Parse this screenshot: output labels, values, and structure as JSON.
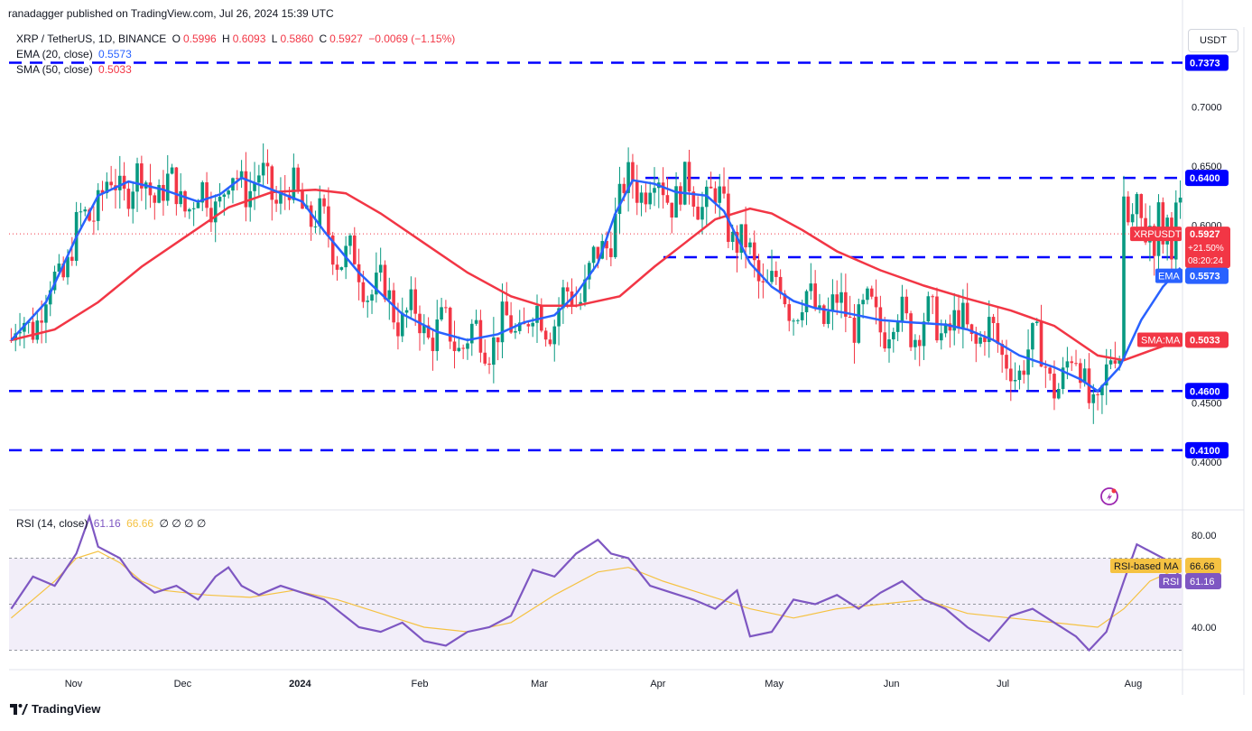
{
  "header": {
    "published": "ranadagger published on TradingView.com, Jul 26, 2024 15:39 UTC",
    "symbol": "XRP / TetherUS, 1D, BINANCE",
    "o_label": "O",
    "o_val": "0.5996",
    "h_label": "H",
    "h_val": "0.6093",
    "l_label": "L",
    "l_val": "0.5860",
    "c_label": "C",
    "c_val": "0.5927",
    "change": "−0.0069 (−1.15%)",
    "ema_label": "EMA (20, close)",
    "ema_val": "0.5573",
    "sma_label": "SMA (50, close)",
    "sma_val": "0.5033",
    "rsi_label": "RSI (14, close)",
    "rsi_val": "61.16",
    "rsi_ma_val": "66.66",
    "rsi_extra": "∅ ∅ ∅ ∅"
  },
  "currency_button": "USDT",
  "branding": "TradingView",
  "colors": {
    "up": "#089981",
    "down": "#f23645",
    "ema": "#2962ff",
    "sma": "#f23645",
    "level": "#0000ff",
    "rsi": "#7e57c2",
    "rsi_ma": "#f5c242",
    "rsi_band": "#ede7f6"
  },
  "chart_data": [
    {
      "type": "candlestick",
      "title": "XRP / TetherUS, 1D, BINANCE",
      "x_ticks": [
        "Nov",
        "Dec",
        "2024",
        "Feb",
        "Mar",
        "Apr",
        "May",
        "Jun",
        "Jul",
        "Aug"
      ],
      "y_ticks": [
        "0.7000",
        "0.6500",
        "0.6000",
        "0.4500",
        "0.4000"
      ],
      "ylim": [
        0.365,
        0.785
      ],
      "horizontal_levels": [
        "0.7373",
        "0.6400",
        "0.5730",
        "0.4600",
        "0.4100"
      ],
      "price_tag": {
        "label": "XRPUSDT",
        "value": "0.5927",
        "change": "+21.50%",
        "countdown": "08:20:24"
      },
      "ema_tag": {
        "label": "EMA",
        "value": "0.5573"
      },
      "sma_tag": {
        "label": "SMA:MA",
        "value": "0.5033"
      },
      "series": [
        {
          "name": "EMA (20, close)",
          "color": "#2962ff",
          "points": [
            [
              0,
              0.503
            ],
            [
              8,
              0.535
            ],
            [
              15,
              0.59
            ],
            [
              20,
              0.625
            ],
            [
              27,
              0.637
            ],
            [
              35,
              0.63
            ],
            [
              43,
              0.62
            ],
            [
              48,
              0.626
            ],
            [
              53,
              0.64
            ],
            [
              60,
              0.63
            ],
            [
              67,
              0.62
            ],
            [
              72,
              0.595
            ],
            [
              80,
              0.56
            ],
            [
              90,
              0.525
            ],
            [
              98,
              0.51
            ],
            [
              105,
              0.503
            ],
            [
              112,
              0.508
            ],
            [
              118,
              0.518
            ],
            [
              125,
              0.524
            ],
            [
              130,
              0.542
            ],
            [
              135,
              0.568
            ],
            [
              139,
              0.61
            ],
            [
              143,
              0.638
            ],
            [
              148,
              0.635
            ],
            [
              153,
              0.628
            ],
            [
              160,
              0.625
            ],
            [
              164,
              0.612
            ],
            [
              170,
              0.568
            ],
            [
              175,
              0.548
            ],
            [
              180,
              0.536
            ],
            [
              185,
              0.53
            ],
            [
              192,
              0.526
            ],
            [
              200,
              0.52
            ],
            [
              207,
              0.518
            ],
            [
              215,
              0.516
            ],
            [
              220,
              0.512
            ],
            [
              226,
              0.503
            ],
            [
              232,
              0.49
            ],
            [
              240,
              0.48
            ],
            [
              246,
              0.47
            ],
            [
              250,
              0.46
            ],
            [
              255,
              0.48
            ],
            [
              260,
              0.52
            ],
            [
              265,
              0.548
            ],
            [
              269,
              0.564
            ]
          ]
        },
        {
          "name": "SMA (50, close)",
          "color": "#f23645",
          "points": [
            [
              0,
              0.503
            ],
            [
              10,
              0.512
            ],
            [
              20,
              0.535
            ],
            [
              30,
              0.565
            ],
            [
              40,
              0.59
            ],
            [
              50,
              0.615
            ],
            [
              60,
              0.628
            ],
            [
              70,
              0.63
            ],
            [
              77,
              0.627
            ],
            [
              85,
              0.61
            ],
            [
              95,
              0.585
            ],
            [
              105,
              0.56
            ],
            [
              115,
              0.54
            ],
            [
              122,
              0.532
            ],
            [
              130,
              0.532
            ],
            [
              140,
              0.54
            ],
            [
              148,
              0.565
            ],
            [
              155,
              0.585
            ],
            [
              162,
              0.605
            ],
            [
              170,
              0.614
            ],
            [
              175,
              0.61
            ],
            [
              182,
              0.596
            ],
            [
              190,
              0.578
            ],
            [
              200,
              0.562
            ],
            [
              210,
              0.549
            ],
            [
              220,
              0.538
            ],
            [
              230,
              0.528
            ],
            [
              240,
              0.515
            ],
            [
              250,
              0.49
            ],
            [
              256,
              0.486
            ],
            [
              262,
              0.494
            ],
            [
              269,
              0.503
            ]
          ]
        }
      ]
    },
    {
      "type": "line",
      "title": "RSI (14, close)",
      "y_ticks": [
        "80.00",
        "40.00"
      ],
      "ylim": [
        22,
        92
      ],
      "bands": [
        30,
        70
      ],
      "tags": [
        {
          "label": "RSI-based MA",
          "value": "66.66"
        },
        {
          "label": "RSI",
          "value": "61.16"
        }
      ],
      "series": [
        {
          "name": "RSI",
          "color": "#7e57c2",
          "points": [
            [
              0,
              48
            ],
            [
              5,
              62
            ],
            [
              10,
              58
            ],
            [
              15,
              72
            ],
            [
              18,
              88
            ],
            [
              20,
              75
            ],
            [
              25,
              70
            ],
            [
              28,
              62
            ],
            [
              33,
              55
            ],
            [
              38,
              58
            ],
            [
              43,
              52
            ],
            [
              47,
              62
            ],
            [
              50,
              66
            ],
            [
              53,
              58
            ],
            [
              57,
              54
            ],
            [
              62,
              58
            ],
            [
              67,
              55
            ],
            [
              72,
              52
            ],
            [
              76,
              46
            ],
            [
              80,
              40
            ],
            [
              85,
              38
            ],
            [
              90,
              42
            ],
            [
              95,
              34
            ],
            [
              100,
              32
            ],
            [
              105,
              38
            ],
            [
              110,
              40
            ],
            [
              115,
              45
            ],
            [
              120,
              65
            ],
            [
              125,
              62
            ],
            [
              130,
              72
            ],
            [
              135,
              78
            ],
            [
              138,
              72
            ],
            [
              142,
              70
            ],
            [
              147,
              58
            ],
            [
              152,
              55
            ],
            [
              157,
              52
            ],
            [
              162,
              48
            ],
            [
              167,
              56
            ],
            [
              170,
              36
            ],
            [
              175,
              38
            ],
            [
              180,
              52
            ],
            [
              185,
              50
            ],
            [
              190,
              54
            ],
            [
              195,
              48
            ],
            [
              200,
              55
            ],
            [
              205,
              60
            ],
            [
              210,
              52
            ],
            [
              215,
              48
            ],
            [
              220,
              40
            ],
            [
              225,
              34
            ],
            [
              230,
              45
            ],
            [
              235,
              48
            ],
            [
              240,
              42
            ],
            [
              245,
              36
            ],
            [
              248,
              30
            ],
            [
              252,
              38
            ],
            [
              256,
              60
            ],
            [
              259,
              76
            ],
            [
              263,
              72
            ],
            [
              267,
              68
            ],
            [
              269,
              61
            ]
          ]
        },
        {
          "name": "RSI-based MA",
          "color": "#f5c242",
          "points": [
            [
              0,
              44
            ],
            [
              5,
              52
            ],
            [
              10,
              60
            ],
            [
              15,
              70
            ],
            [
              20,
              73
            ],
            [
              25,
              68
            ],
            [
              30,
              60
            ],
            [
              35,
              56
            ],
            [
              45,
              54
            ],
            [
              55,
              53
            ],
            [
              65,
              56
            ],
            [
              75,
              52
            ],
            [
              85,
              46
            ],
            [
              95,
              40
            ],
            [
              105,
              38
            ],
            [
              115,
              42
            ],
            [
              125,
              54
            ],
            [
              135,
              64
            ],
            [
              142,
              66
            ],
            [
              150,
              60
            ],
            [
              160,
              54
            ],
            [
              170,
              48
            ],
            [
              180,
              44
            ],
            [
              190,
              48
            ],
            [
              200,
              50
            ],
            [
              210,
              52
            ],
            [
              220,
              46
            ],
            [
              230,
              44
            ],
            [
              240,
              42
            ],
            [
              250,
              40
            ],
            [
              256,
              48
            ],
            [
              262,
              60
            ],
            [
              269,
              66
            ]
          ]
        }
      ]
    }
  ]
}
